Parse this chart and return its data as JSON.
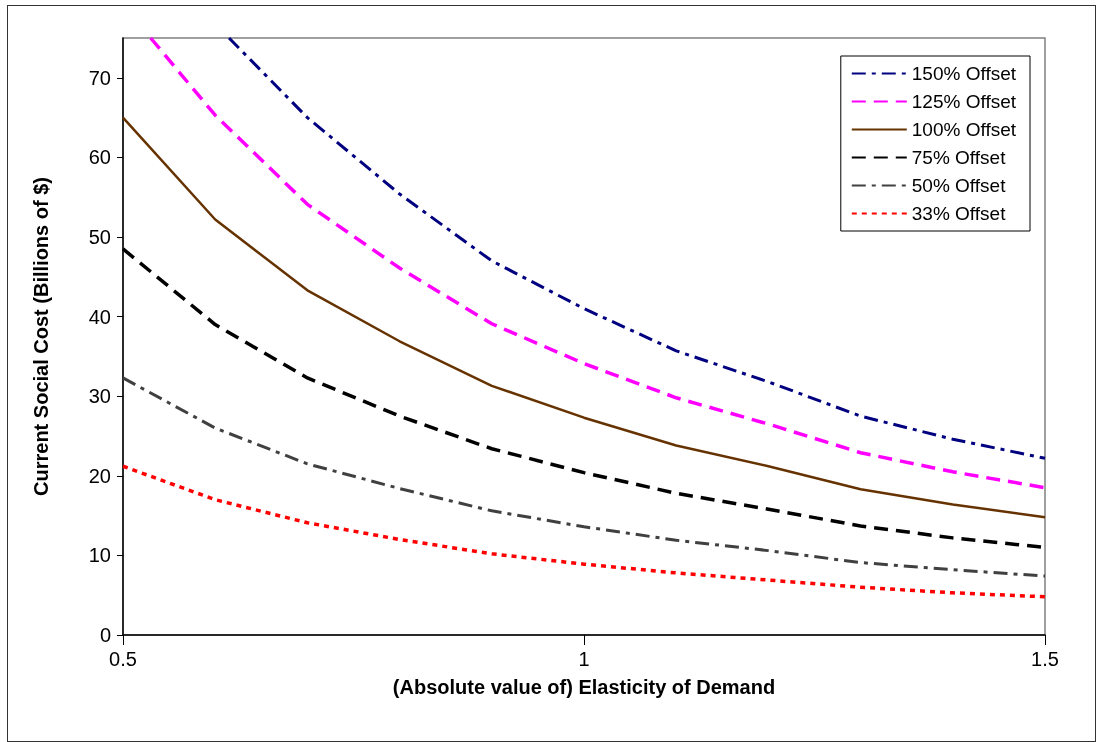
{
  "chart_data": {
    "type": "line",
    "xlabel": "(Absolute value of) Elasticity of Demand",
    "ylabel": "Current Social Cost (Billions of $)",
    "xlim": [
      0.5,
      1.5
    ],
    "xticks": [
      0.5,
      1,
      1.5
    ],
    "ylim": [
      0,
      75
    ],
    "yticks": [
      0,
      10,
      20,
      30,
      40,
      50,
      60,
      70
    ],
    "grid": false,
    "legend": "top right",
    "marker": "none",
    "series": [
      {
        "name": "150% Offset",
        "color": "#000080",
        "line_style": "dashdot",
        "x": [
          0.615,
          0.7,
          0.8,
          0.9,
          1.0,
          1.1,
          1.2,
          1.3,
          1.4,
          1.5
        ],
        "values": [
          75,
          65,
          55.4,
          47,
          41,
          35.7,
          31.8,
          27.5,
          24.6,
          22.2
        ]
      },
      {
        "name": "125% Offset",
        "color": "#ff00ff",
        "line_style": "dashed",
        "x": [
          0.53,
          0.6,
          0.7,
          0.8,
          0.9,
          1.0,
          1.1,
          1.2,
          1.3,
          1.4,
          1.5
        ],
        "values": [
          75,
          65.3,
          54.1,
          46.1,
          39.1,
          34.1,
          29.8,
          26.5,
          22.9,
          20.5,
          18.5
        ]
      },
      {
        "name": "100% Offset",
        "color": "#663300",
        "line_style": "solid",
        "x": [
          0.5,
          0.6,
          0.7,
          0.8,
          0.9,
          1.0,
          1.1,
          1.2,
          1.3,
          1.4,
          1.5
        ],
        "values": [
          65,
          52.2,
          43.3,
          36.9,
          31.3,
          27.3,
          23.8,
          21.2,
          18.3,
          16.4,
          14.8
        ]
      },
      {
        "name": "75% Offset",
        "color": "#000000",
        "line_style": "dashed",
        "x": [
          0.5,
          0.6,
          0.7,
          0.8,
          0.9,
          1.0,
          1.1,
          1.2,
          1.3,
          1.4,
          1.5
        ],
        "values": [
          48.5,
          39,
          32.3,
          27.5,
          23.4,
          20.4,
          17.8,
          15.8,
          13.7,
          12.2,
          11
        ]
      },
      {
        "name": "50% Offset",
        "color": "#404040",
        "line_style": "dashdot",
        "x": [
          0.5,
          0.6,
          0.7,
          0.8,
          0.9,
          1.0,
          1.1,
          1.2,
          1.3,
          1.4,
          1.5
        ],
        "values": [
          32.3,
          26,
          21.5,
          18.4,
          15.6,
          13.6,
          11.9,
          10.6,
          9.1,
          8.2,
          7.4
        ]
      },
      {
        "name": "33% Offset",
        "color": "#ff0000",
        "line_style": "dotted",
        "x": [
          0.5,
          0.6,
          0.7,
          0.8,
          0.9,
          1.0,
          1.1,
          1.2,
          1.3,
          1.4,
          1.5
        ],
        "values": [
          21.2,
          17,
          14.1,
          12,
          10.2,
          8.9,
          7.8,
          6.9,
          6,
          5.3,
          4.8
        ]
      }
    ]
  }
}
